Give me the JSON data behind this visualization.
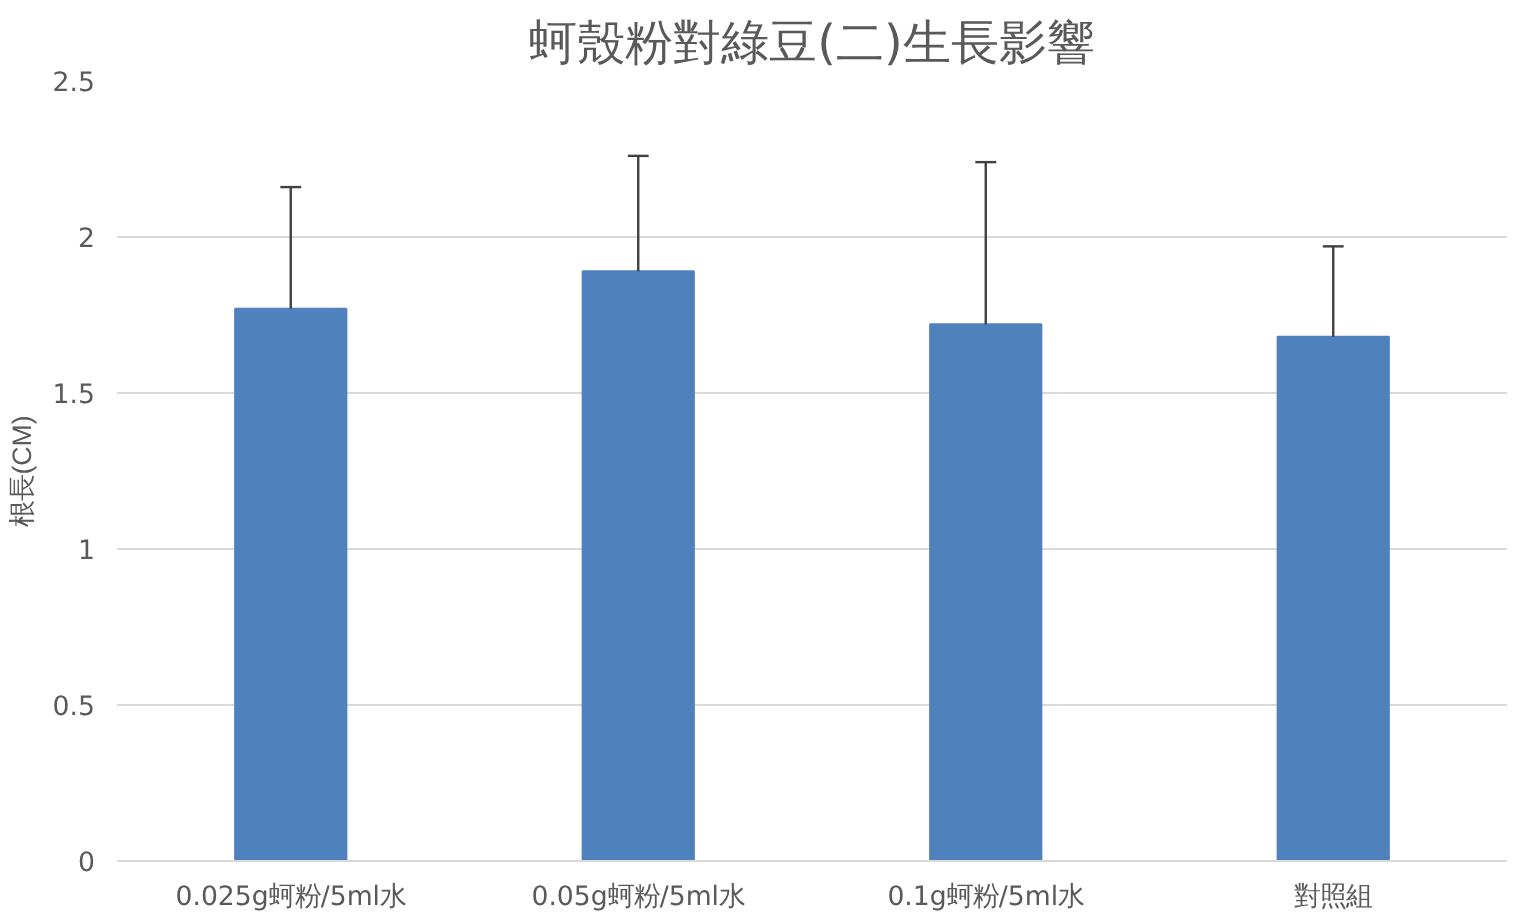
{
  "chart_data": {
    "type": "bar",
    "title": "蚵殼粉對綠豆(二)生長影響",
    "ylabel": "根長(CM)",
    "categories": [
      "0.025g蚵粉/5ml水",
      "0.05g蚵粉/5ml水",
      "0.1g蚵粉/5ml水",
      "對照組"
    ],
    "values": [
      1.77,
      1.89,
      1.72,
      1.68
    ],
    "errors": [
      [
        1.77,
        2.16
      ],
      [
        1.89,
        2.26
      ],
      [
        1.72,
        2.24
      ],
      [
        1.68,
        1.97
      ]
    ],
    "color": "#4f81bd",
    "ylim": [
      0,
      2.5
    ],
    "yticks": [
      0,
      0.5,
      1,
      1.5,
      2,
      2.5
    ],
    "grid": "y"
  }
}
